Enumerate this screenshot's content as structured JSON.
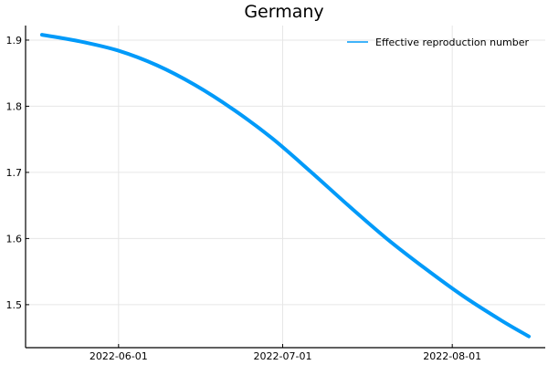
{
  "chart_data": {
    "type": "line",
    "title": "Germany",
    "xlabel": "",
    "ylabel": "",
    "x_type": "date",
    "xlim": [
      "2022-05-15",
      "2022-08-18"
    ],
    "ylim": [
      1.435,
      1.922
    ],
    "x_ticks": [
      "2022-06-01",
      "2022-07-01",
      "2022-08-01"
    ],
    "y_ticks": [
      1.5,
      1.6,
      1.7,
      1.8,
      1.9
    ],
    "y_tick_labels": [
      "1.5",
      "1.6",
      "1.7",
      "1.8",
      "1.9"
    ],
    "grid": true,
    "legend_position": "top-right",
    "series": [
      {
        "name": "Effective reproduction number",
        "color": "#009af9",
        "x": [
          "2022-05-18",
          "2022-05-25",
          "2022-06-01",
          "2022-06-08",
          "2022-06-15",
          "2022-06-22",
          "2022-06-29",
          "2022-07-06",
          "2022-07-13",
          "2022-07-20",
          "2022-07-27",
          "2022-08-03",
          "2022-08-10",
          "2022-08-15"
        ],
        "y": [
          1.908,
          1.898,
          1.884,
          1.862,
          1.832,
          1.795,
          1.752,
          1.702,
          1.65,
          1.6,
          1.555,
          1.513,
          1.476,
          1.452
        ]
      }
    ]
  }
}
